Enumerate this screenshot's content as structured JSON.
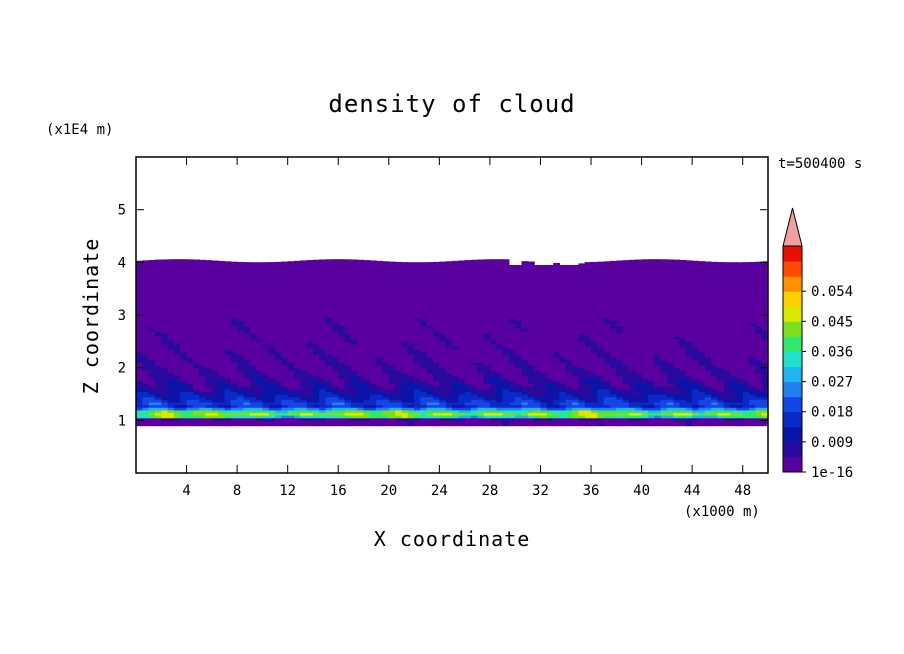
{
  "chart_data": {
    "type": "contour",
    "title": "density of cloud",
    "xlabel": "X coordinate",
    "ylabel": "Z coordinate",
    "x_unit": "(x1000 m)",
    "y_unit": "(x1E4 m)",
    "time_label": "t=500400 s",
    "xlim": [
      0,
      50
    ],
    "ylim": [
      0,
      6
    ],
    "x_ticks": [
      "4",
      "8",
      "12",
      "16",
      "20",
      "24",
      "28",
      "32",
      "36",
      "40",
      "44",
      "48"
    ],
    "y_ticks": [
      "1",
      "2",
      "3",
      "4",
      "5"
    ],
    "colorbar": {
      "tick_labels": [
        "1e-16",
        "0.009",
        "0.018",
        "0.027",
        "0.036",
        "0.045",
        "0.054"
      ],
      "levels": [
        1e-16,
        0.0045,
        0.009,
        0.0135,
        0.018,
        0.0225,
        0.027,
        0.0315,
        0.036,
        0.0405,
        0.045,
        0.0495,
        0.054,
        0.0585
      ],
      "colors": [
        "#5a00a0",
        "#2a0a9e",
        "#0a14a8",
        "#0a2ac8",
        "#1446e6",
        "#2080f0",
        "#20b4f0",
        "#20e0d0",
        "#30e870",
        "#78e020",
        "#d8e800",
        "#ffd000",
        "#ff9000",
        "#ff4a00",
        "#e81000"
      ],
      "extend_color": "#f0a0a0"
    },
    "cloud_layer": {
      "z_bottom": 0.9,
      "z_top": 4.03,
      "peak_z": 1.1,
      "peak_value": 0.04,
      "gap_x": [
        29.5,
        35.0
      ],
      "gap_z": 4.0
    }
  }
}
